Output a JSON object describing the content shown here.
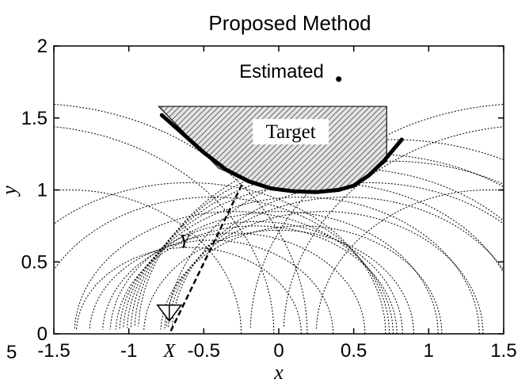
{
  "chart_data": {
    "type": "line",
    "title": "Proposed Method",
    "xlabel": "x",
    "ylabel": "y",
    "xlim": [
      -1.5,
      1.5
    ],
    "ylim": [
      0,
      2
    ],
    "xticks": [
      {
        "value": -1.5,
        "label": "-1.5"
      },
      {
        "value": -1,
        "label": "-1"
      },
      {
        "value": -0.5,
        "label": "-0.5"
      },
      {
        "value": 0,
        "label": "0"
      },
      {
        "value": 0.5,
        "label": "0.5"
      },
      {
        "value": 1,
        "label": "1"
      },
      {
        "value": 1.5,
        "label": "1.5"
      }
    ],
    "yticks": [
      {
        "value": 0,
        "label": "0"
      },
      {
        "value": 0.5,
        "label": "0.5"
      },
      {
        "value": 1,
        "label": "1"
      },
      {
        "value": 1.5,
        "label": "1.5"
      },
      {
        "value": 2,
        "label": "2"
      }
    ],
    "grid": false,
    "cropped_left_tick": "5",
    "target": {
      "label": "Target",
      "polygon": [
        [
          -0.8,
          1.58
        ],
        [
          0.72,
          1.58
        ],
        [
          0.72,
          1.2
        ],
        [
          0.5,
          1.02
        ],
        [
          0.2,
          0.99
        ],
        [
          -0.1,
          1.02
        ],
        [
          -0.4,
          1.15
        ],
        [
          -0.8,
          1.58
        ]
      ]
    },
    "estimated_boundary": {
      "label": "Estimated",
      "x": [
        -0.78,
        -0.65,
        -0.5,
        -0.35,
        -0.2,
        -0.05,
        0.1,
        0.25,
        0.4,
        0.5,
        0.6,
        0.7,
        0.82
      ],
      "y": [
        1.52,
        1.4,
        1.26,
        1.14,
        1.06,
        1.01,
        0.99,
        0.985,
        1.0,
        1.03,
        1.1,
        1.2,
        1.35
      ]
    },
    "sensor_path": {
      "x_label": "X",
      "y_label": "Y",
      "x": [
        -0.72,
        -0.24
      ],
      "y": [
        0.02,
        1.05
      ]
    },
    "sensor_position": {
      "x": -0.73,
      "y": 0.2
    }
  }
}
